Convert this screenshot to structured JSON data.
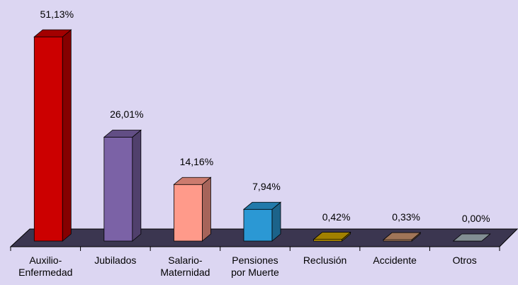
{
  "chart_data": {
    "type": "bar3d",
    "categories": [
      "Auxilio-\nEnfermedad",
      "Jubilados",
      "Salario-\nMaternidad",
      "Pensiones\npor Muerte",
      "Reclusión",
      "Accidente",
      "Otros"
    ],
    "values": [
      51.13,
      26.01,
      14.16,
      7.94,
      0.42,
      0.33,
      0.0
    ],
    "value_labels": [
      "51,13%",
      "26,01%",
      "14,16%",
      "7,94%",
      "0,42%",
      "0,33%",
      "0,00%"
    ],
    "colors": [
      "#cc0000",
      "#7b62a6",
      "#ff9a8a",
      "#2b98d4",
      "#c9a000",
      "#c8926e",
      "#a3b1b8"
    ]
  }
}
